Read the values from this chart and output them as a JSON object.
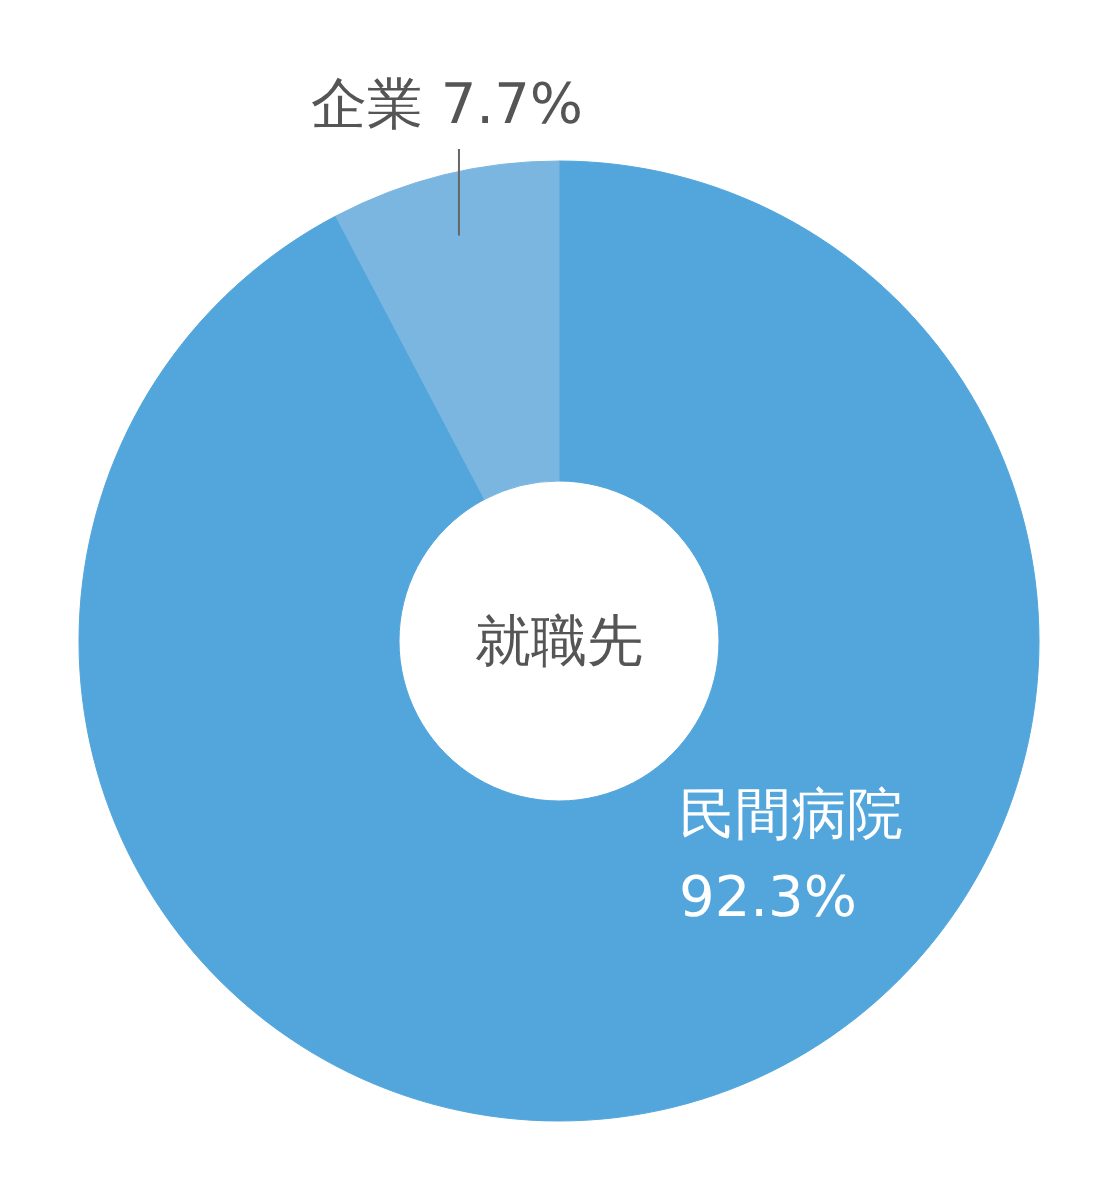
{
  "chart_data": {
    "type": "donut",
    "title": "就職先",
    "categories": [
      "民間病院",
      "企業"
    ],
    "values": [
      92.3,
      7.7
    ],
    "colors": [
      "#52a6dc",
      "#7ab6e0"
    ],
    "value_labels": [
      "92.3%",
      "7.7%"
    ]
  }
}
